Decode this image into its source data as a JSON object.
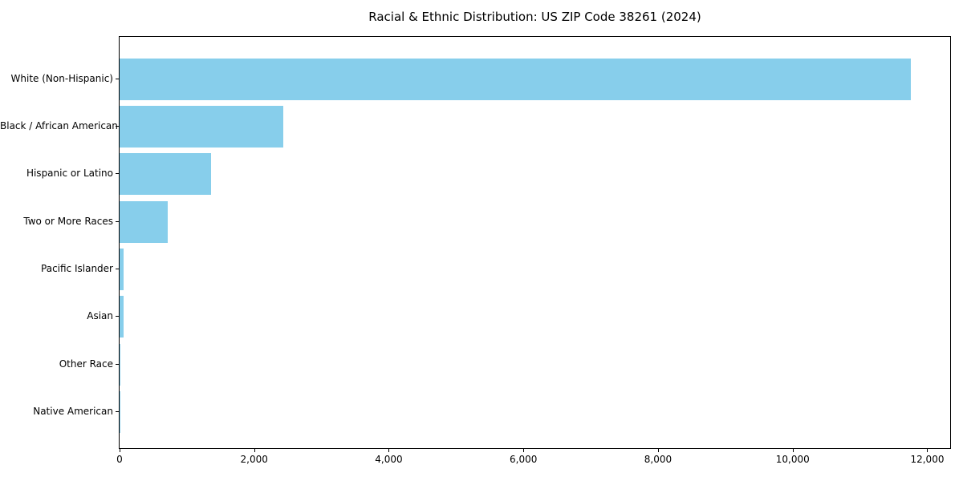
{
  "page": {
    "background_color": "#ffffff"
  },
  "chart_data": {
    "type": "bar",
    "orientation": "horizontal",
    "title": "Racial & Ethnic Distribution: US ZIP Code 38261 (2024)",
    "categories": [
      "White (Non-Hispanic)",
      "Black / African American",
      "Hispanic or Latino",
      "Two or More Races",
      "Pacific Islander",
      "Asian",
      "Other Race",
      "Native American"
    ],
    "values": [
      11750,
      2430,
      1355,
      710,
      55,
      55,
      10,
      5
    ],
    "xlabel": "",
    "ylabel": "",
    "xlim": [
      0,
      12340
    ],
    "x_ticks": [
      0,
      2000,
      4000,
      6000,
      8000,
      10000,
      12000
    ],
    "x_tick_labels": [
      "0",
      "2,000",
      "4,000",
      "6,000",
      "8,000",
      "10,000",
      "12,000"
    ],
    "bar_color": "#87CEEB",
    "axis_color": "#000000",
    "grid": false,
    "legend": null
  }
}
